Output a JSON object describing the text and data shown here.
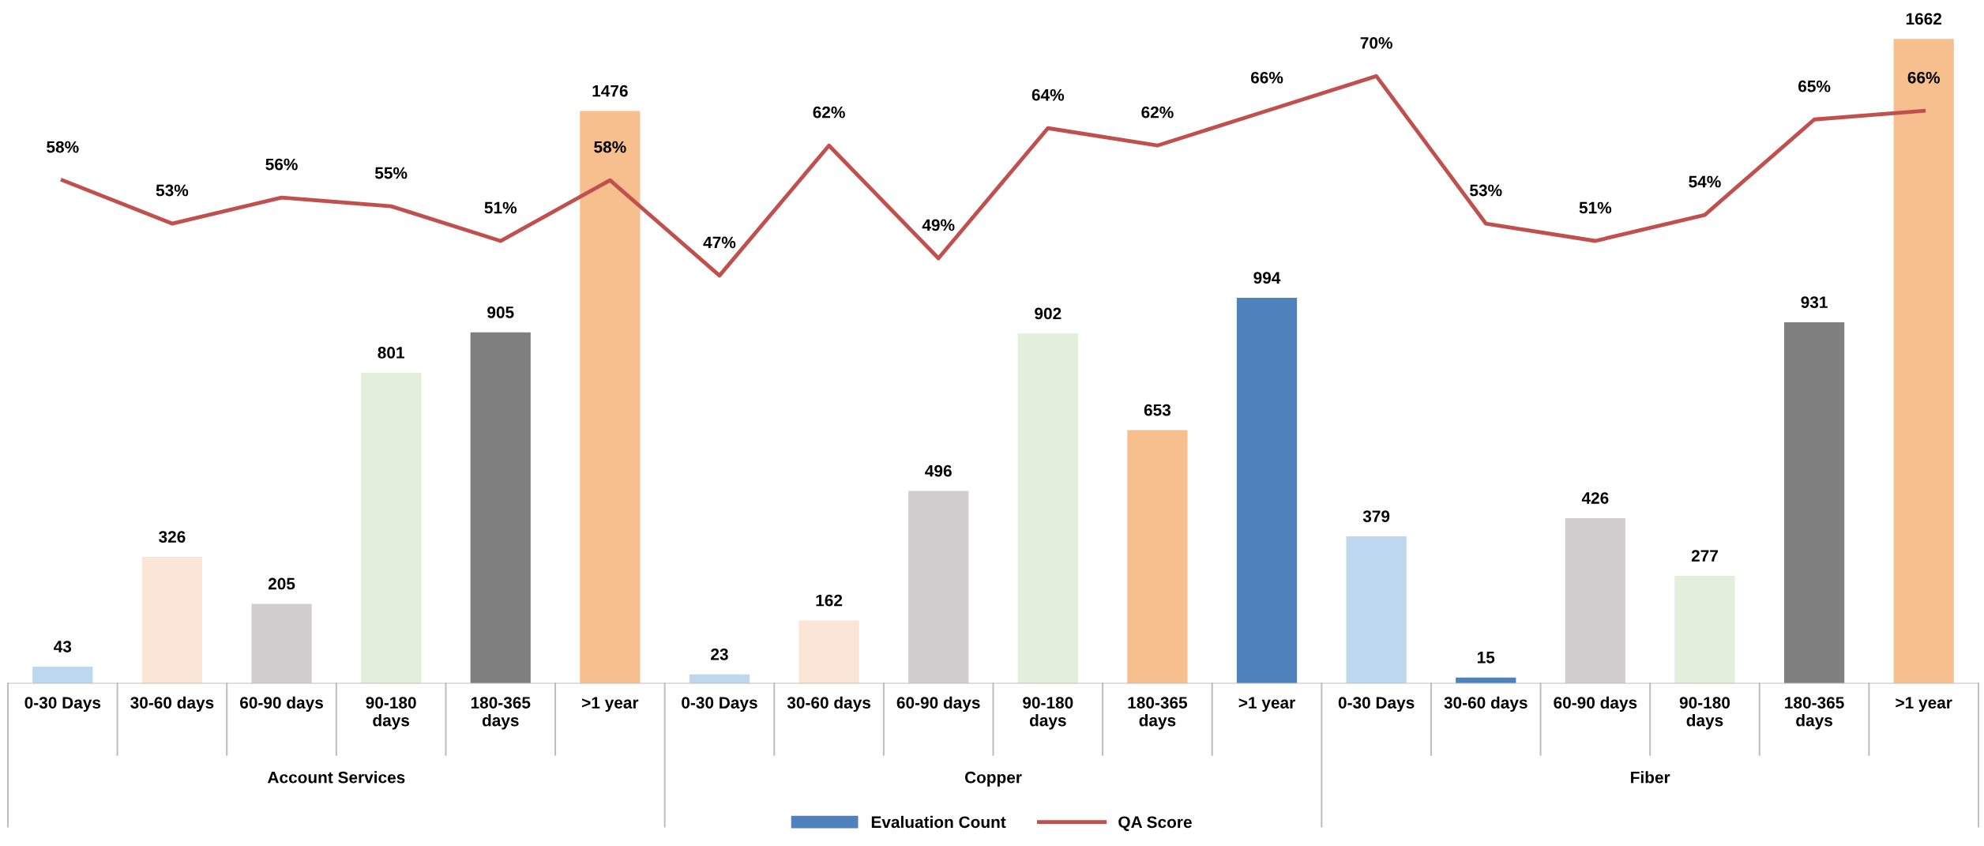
{
  "chart_data": {
    "type": "bar",
    "categories": [
      "0-30 Days",
      "30-60 days",
      "60-90 days",
      "90-180\ndays",
      "180-365\ndays",
      ">1 year",
      "0-30 Days",
      "30-60 days",
      "60-90 days",
      "90-180\ndays",
      "180-365\ndays",
      ">1 year",
      "0-30 Days",
      "30-60 days",
      "60-90 days",
      "90-180\ndays",
      "180-365\ndays",
      ">1 year"
    ],
    "series": [
      {
        "name": "Evaluation Count",
        "color": "#4f81bd",
        "values": [
          43,
          326,
          205,
          801,
          905,
          1476,
          23,
          162,
          496,
          902,
          653,
          994,
          379,
          15,
          426,
          277,
          931,
          1662
        ],
        "colors": [
          "#bdd7ee",
          "#fbe5d6",
          "#d0cece",
          "#e2efda",
          "#7f7f7f",
          "#f8bf8e",
          "#bdd7ee",
          "#fbe5d6",
          "#d0cece",
          "#e2efda",
          "#f8bf8e",
          "#4f81bd",
          "#bdd7ee",
          "#4f81bd",
          "#d0cece",
          "#e2efda",
          "#7f7f7f",
          "#f8bf8e"
        ]
      },
      {
        "name": "QA Score",
        "type": "line",
        "axis": "y2",
        "color": "#c0504d",
        "values": [
          58,
          53,
          56,
          55,
          51,
          58,
          47,
          62,
          49,
          64,
          62,
          66,
          70,
          53,
          51,
          54,
          65,
          66
        ],
        "value_labels": [
          "58%",
          "53%",
          "56%",
          "55%",
          "51%",
          "58%",
          "47%",
          "62%",
          "49%",
          "64%",
          "62%",
          "66%",
          "70%",
          "53%",
          "51%",
          "54%",
          "65%",
          "66%"
        ]
      }
    ],
    "annotations": [
      "Account Services",
      "Copper",
      "Fiber"
    ],
    "data_labels": true,
    "tick_labels": "x",
    "grid": false,
    "legend": "bottom",
    "marker": "none",
    "line_style": "solid"
  }
}
